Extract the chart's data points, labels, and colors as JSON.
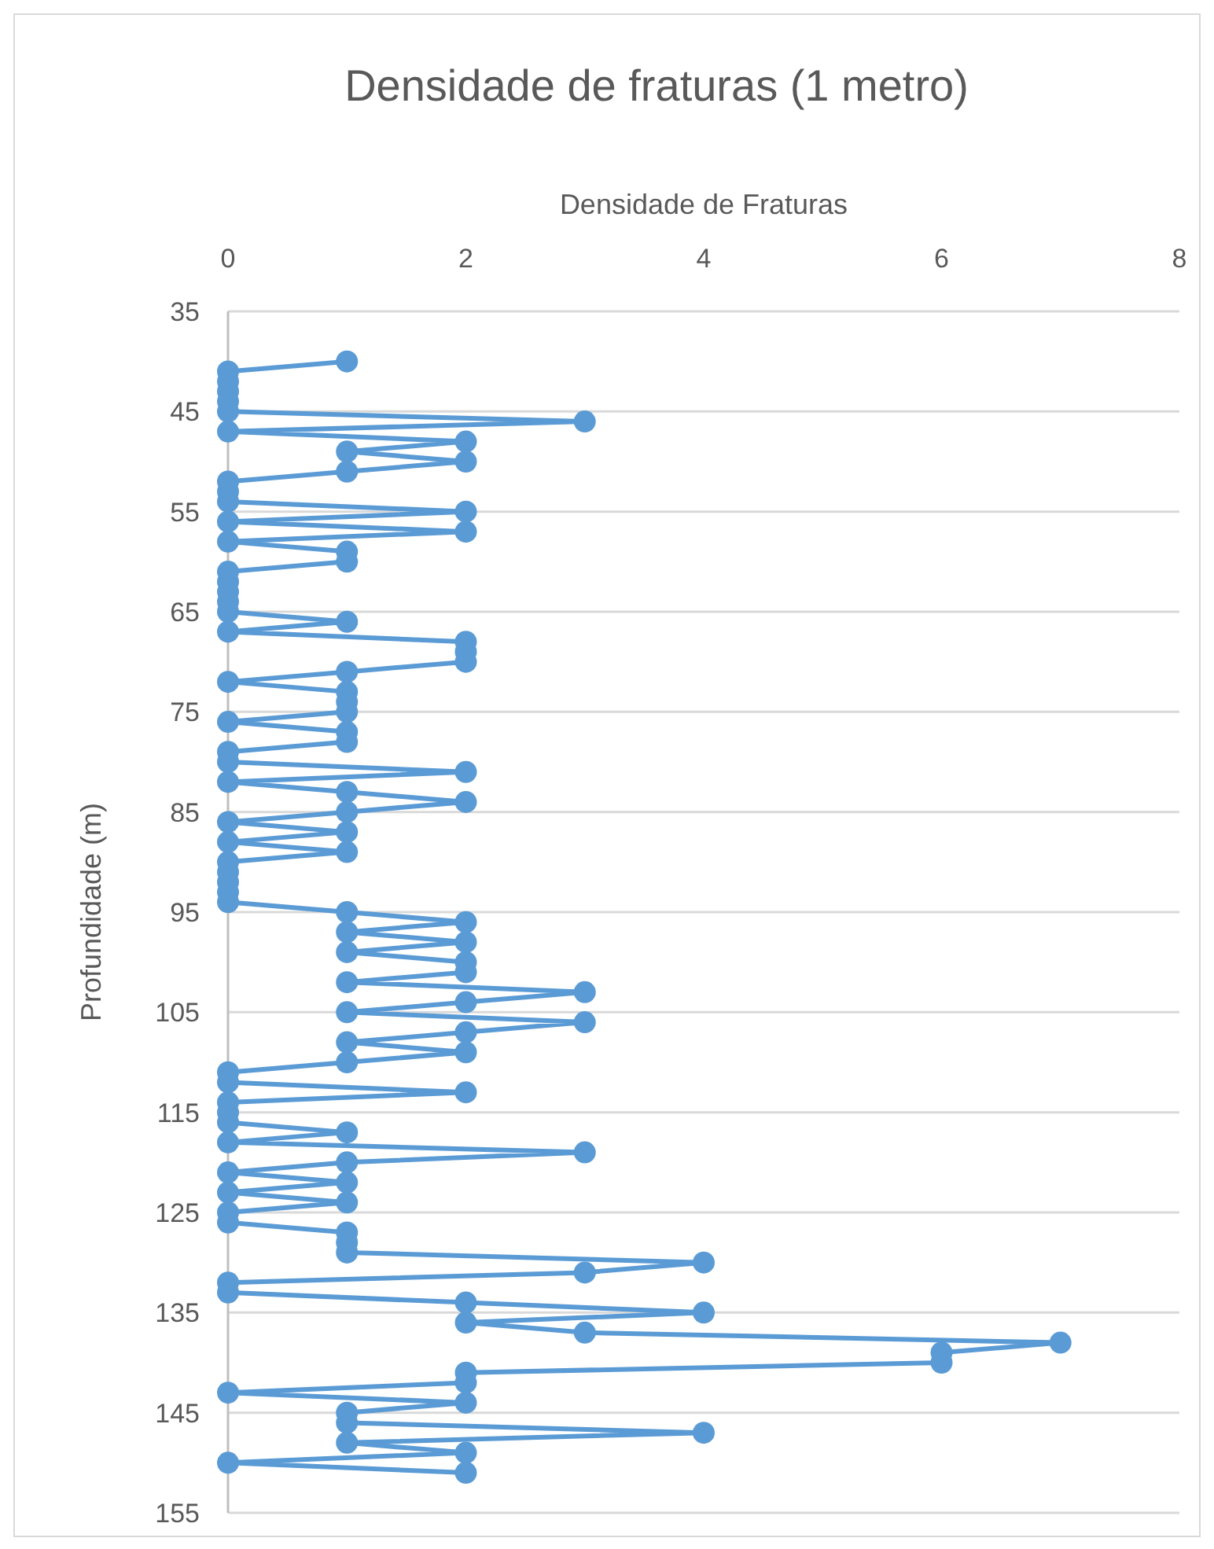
{
  "chart_data": {
    "type": "line",
    "orientation": "horizontal",
    "title": "Densidade de fraturas (1 metro)",
    "xlabel": "Densidade de Fraturas",
    "ylabel": "Profundidade (m)",
    "x": [
      40,
      41,
      42,
      43,
      44,
      45,
      46,
      47,
      48,
      49,
      50,
      51,
      52,
      53,
      54,
      55,
      56,
      57,
      58,
      59,
      60,
      61,
      62,
      63,
      64,
      65,
      66,
      67,
      68,
      69,
      70,
      71,
      72,
      73,
      74,
      75,
      76,
      77,
      78,
      79,
      80,
      81,
      82,
      83,
      84,
      85,
      86,
      87,
      88,
      89,
      90,
      91,
      92,
      93,
      94,
      95,
      96,
      97,
      98,
      99,
      100,
      101,
      102,
      103,
      104,
      105,
      106,
      107,
      108,
      109,
      110,
      111,
      112,
      113,
      114,
      115,
      116,
      117,
      118,
      119,
      120,
      121,
      122,
      123,
      124,
      125,
      126,
      127,
      128,
      129,
      130,
      131,
      132,
      133,
      134,
      135,
      136,
      137,
      138,
      139,
      140,
      141,
      142,
      143,
      144,
      145,
      146,
      147,
      148,
      149,
      150,
      151
    ],
    "series": [
      {
        "color": "#5b9bd5",
        "values": [
          1,
          0,
          0,
          0,
          0,
          0,
          3,
          0,
          2,
          1,
          2,
          1,
          0,
          0,
          0,
          2,
          0,
          2,
          0,
          1,
          1,
          0,
          0,
          0,
          0,
          0,
          1,
          0,
          2,
          2,
          2,
          1,
          0,
          1,
          1,
          1,
          0,
          1,
          1,
          0,
          0,
          2,
          0,
          1,
          2,
          1,
          0,
          1,
          0,
          1,
          0,
          0,
          0,
          0,
          0,
          1,
          2,
          1,
          2,
          1,
          2,
          2,
          1,
          3,
          2,
          1,
          3,
          2,
          1,
          2,
          1,
          0,
          0,
          2,
          0,
          0,
          0,
          1,
          0,
          3,
          1,
          0,
          1,
          0,
          1,
          0,
          0,
          1,
          1,
          1,
          4,
          3,
          0,
          0,
          2,
          4,
          2,
          3,
          7,
          6,
          6,
          2,
          2,
          0,
          2,
          1,
          1,
          4,
          1,
          2,
          0,
          2
        ]
      }
    ],
    "xlim": [
      0,
      8
    ],
    "xticks": [
      0,
      2,
      4,
      6,
      8
    ],
    "ylim": [
      155,
      35
    ],
    "yticks": [
      35,
      45,
      55,
      65,
      75,
      85,
      95,
      105,
      115,
      125,
      135,
      145,
      155
    ],
    "grid": "y",
    "marker": "circle",
    "line_style": "solid"
  }
}
